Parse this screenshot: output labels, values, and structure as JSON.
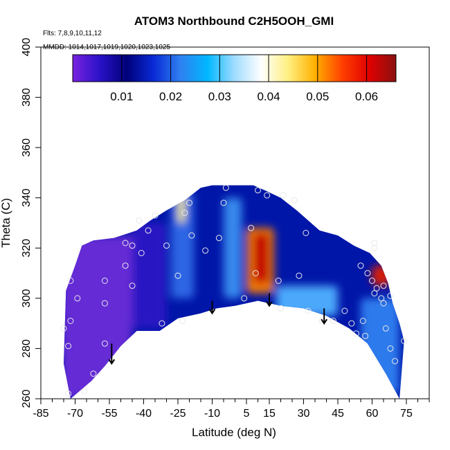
{
  "chart_data": {
    "type": "heatmap",
    "title": "ATOM3 Northbound C2H5OOH_GMI",
    "annotations": {
      "flights": "Flts: 7,8,9,10,11,12",
      "dates": "MMDD: 1014,1017,1019,1020,1023,1025"
    },
    "xlabel": "Latitude (deg N)",
    "ylabel": "Theta (C)",
    "xlim": [
      -85,
      85
    ],
    "ylim": [
      260,
      400
    ],
    "x_ticks": [
      -85,
      -70,
      -55,
      -40,
      -25,
      -10,
      5,
      15,
      30,
      45,
      60,
      75
    ],
    "y_ticks": [
      260,
      280,
      300,
      320,
      340,
      360,
      380,
      400
    ],
    "colorbar": {
      "ticks": [
        0.01,
        0.02,
        0.03,
        0.04,
        0.05,
        0.06
      ],
      "tick_labels": [
        "0.01",
        "0.02",
        "0.03",
        "0.04",
        "0.05",
        "0.06"
      ],
      "range": [
        0,
        0.066
      ],
      "colors": [
        "#7a22e0",
        "#2a12c8",
        "#00007a",
        "#0a2ad6",
        "#2f80f0",
        "#00b7ff",
        "#9fdcff",
        "#ffffff",
        "#ffef80",
        "#ffb000",
        "#ff4000",
        "#e00000",
        "#8a1010"
      ]
    },
    "background_color": "#0016a8",
    "region_boundary": {
      "lower": [
        [
          -72,
          260
        ],
        [
          -63,
          267
        ],
        [
          -57,
          273
        ],
        [
          -50,
          281
        ],
        [
          -43,
          287
        ],
        [
          -33,
          287
        ],
        [
          -25,
          292
        ],
        [
          -15,
          294
        ],
        [
          -8,
          296
        ],
        [
          0,
          297
        ],
        [
          10,
          299
        ],
        [
          20,
          297
        ],
        [
          30,
          296
        ],
        [
          40,
          293
        ],
        [
          50,
          288
        ],
        [
          58,
          282
        ],
        [
          66,
          270
        ],
        [
          72,
          260
        ]
      ],
      "upper": [
        [
          72,
          260
        ],
        [
          74,
          283
        ],
        [
          72,
          290
        ],
        [
          69,
          298
        ],
        [
          67,
          306
        ],
        [
          64,
          313
        ],
        [
          59,
          318
        ],
        [
          52,
          321
        ],
        [
          45,
          325
        ],
        [
          37,
          327
        ],
        [
          27,
          335
        ],
        [
          20,
          340
        ],
        [
          13,
          343
        ],
        [
          8,
          345
        ],
        [
          -10,
          345
        ],
        [
          -15,
          344
        ],
        [
          -22,
          339
        ],
        [
          -30,
          335
        ],
        [
          -37,
          331
        ],
        [
          -43,
          327
        ],
        [
          -53,
          324
        ],
        [
          -62,
          323
        ],
        [
          -67,
          321
        ],
        [
          -70,
          313
        ],
        [
          -74,
          303
        ],
        [
          -75,
          274
        ]
      ]
    },
    "fields": [
      {
        "lat_range": [
          -76,
          -45
        ],
        "theta_range": [
          260,
          325
        ],
        "value": 0.004,
        "color": "#6a2ad8"
      },
      {
        "lat_range": [
          -45,
          -30
        ],
        "theta_range": [
          288,
          330
        ],
        "value": 0.007,
        "color": "#2a14c4"
      },
      {
        "lat_range": [
          -28,
          -18
        ],
        "theta_range": [
          300,
          342
        ],
        "value": 0.014,
        "color": "#2f6ae8"
      },
      {
        "lat_range": [
          -5,
          3
        ],
        "theta_range": [
          300,
          340
        ],
        "value": 0.018,
        "color": "#3a8ef0"
      },
      {
        "lat_range": [
          -25,
          -22
        ],
        "theta_range": [
          330,
          342
        ],
        "value": 0.038,
        "color": "#ffef80"
      },
      {
        "lat_range": [
          5,
          17
        ],
        "theta_range": [
          302,
          328
        ],
        "value": 0.05,
        "color": "#ff8000"
      },
      {
        "lat_range": [
          8,
          15
        ],
        "theta_range": [
          306,
          326
        ],
        "value": 0.064,
        "color": "#c00000"
      },
      {
        "lat_range": [
          18,
          45
        ],
        "theta_range": [
          293,
          305
        ],
        "value": 0.024,
        "color": "#4fb0ff"
      },
      {
        "lat_range": [
          55,
          72
        ],
        "theta_range": [
          262,
          300
        ],
        "value": 0.018,
        "color": "#2f80f0"
      },
      {
        "lat_range": [
          60,
          68
        ],
        "theta_range": [
          305,
          313
        ],
        "value": 0.06,
        "color": "#e02000"
      }
    ],
    "observations": [
      [
        -73,
        262
      ],
      [
        -66,
        263
      ],
      [
        -62,
        270
      ],
      [
        -57,
        282
      ],
      [
        -73,
        281
      ],
      [
        -72,
        291
      ],
      [
        -75,
        288
      ],
      [
        -69,
        300
      ],
      [
        -72,
        307
      ],
      [
        -57,
        307
      ],
      [
        -57,
        298
      ],
      [
        -45,
        305
      ],
      [
        -48,
        313
      ],
      [
        -41,
        318
      ],
      [
        -48,
        322
      ],
      [
        -45,
        321
      ],
      [
        -42,
        331
      ],
      [
        -35,
        333
      ],
      [
        -38,
        327
      ],
      [
        -30,
        321
      ],
      [
        -32,
        290
      ],
      [
        -23,
        291
      ],
      [
        -25,
        309
      ],
      [
        -13,
        319
      ],
      [
        -19,
        325
      ],
      [
        -22,
        334
      ],
      [
        -20,
        338
      ],
      [
        -7,
        324
      ],
      [
        -5,
        338
      ],
      [
        -4,
        344
      ],
      [
        7,
        328
      ],
      [
        9,
        310
      ],
      [
        4,
        300
      ],
      [
        10,
        343
      ],
      [
        14,
        341
      ],
      [
        21,
        341
      ],
      [
        26,
        339
      ],
      [
        31,
        326
      ],
      [
        28,
        309
      ],
      [
        19,
        307
      ],
      [
        20,
        296
      ],
      [
        32,
        295
      ],
      [
        38,
        291
      ],
      [
        43,
        291
      ],
      [
        48,
        295
      ],
      [
        53,
        286
      ],
      [
        51,
        290
      ],
      [
        57,
        285
      ],
      [
        56,
        291
      ],
      [
        60,
        307
      ],
      [
        62,
        304
      ],
      [
        61,
        302
      ],
      [
        65,
        305
      ],
      [
        64,
        300
      ],
      [
        65,
        298
      ],
      [
        68,
        301
      ],
      [
        66,
        288
      ],
      [
        68,
        280
      ],
      [
        70,
        275
      ],
      [
        74,
        283
      ],
      [
        61,
        320
      ],
      [
        61,
        322
      ],
      [
        58,
        310
      ],
      [
        55,
        313
      ]
    ],
    "arrows": [
      {
        "lat": -54,
        "theta_top": 282,
        "theta_bottom": 274
      },
      {
        "lat": -10,
        "theta_top": 299,
        "theta_bottom": 294
      },
      {
        "lat": 15,
        "theta_top": 302,
        "theta_bottom": 297
      },
      {
        "lat": 39,
        "theta_top": 296,
        "theta_bottom": 290
      }
    ]
  }
}
